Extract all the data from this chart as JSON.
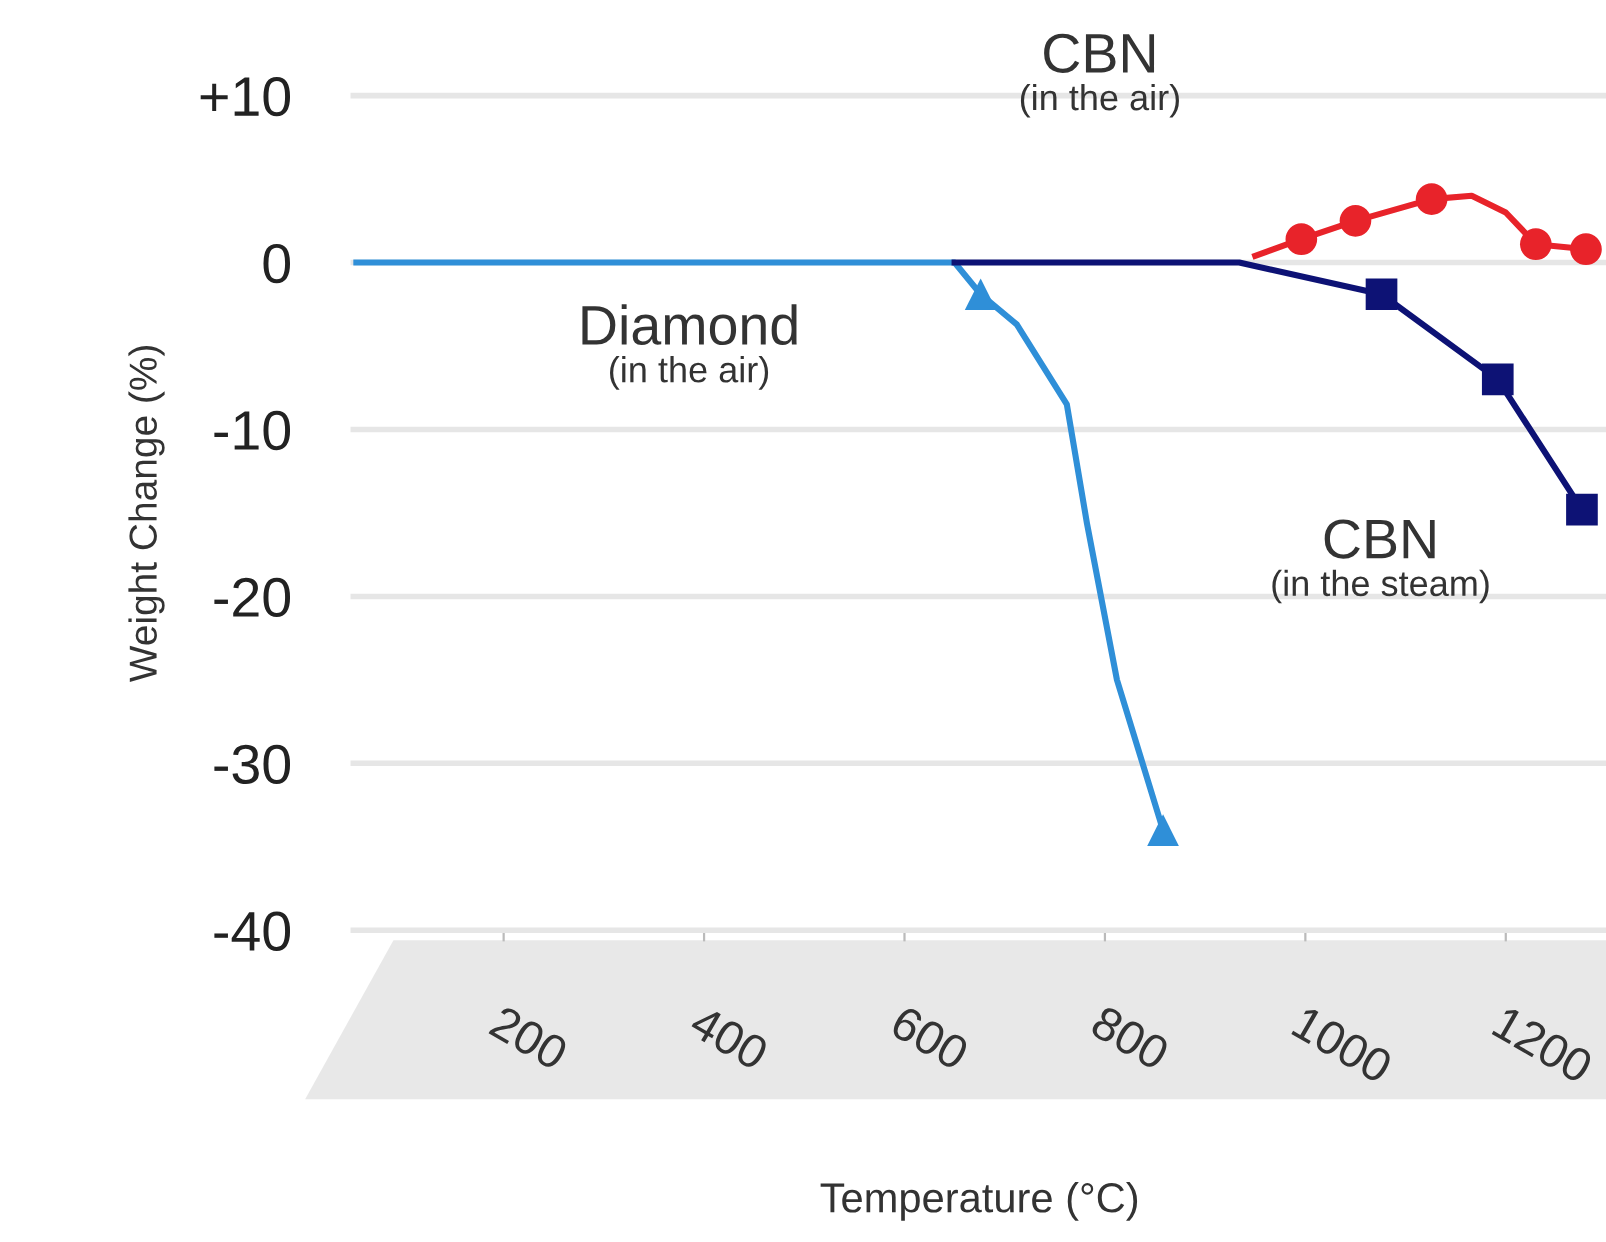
{
  "chart_data": {
    "type": "line",
    "xlabel": "Temperature (°C)",
    "ylabel": "Weight Change (%)",
    "xlim": [
      50,
      1300
    ],
    "xticks": [
      200,
      400,
      600,
      800,
      1000,
      1200
    ],
    "ylim": [
      -40,
      10
    ],
    "yticks": [
      {
        "value": 10,
        "label": "+10"
      },
      {
        "value": 0,
        "label": "0"
      },
      {
        "value": -10,
        "label": "-10"
      },
      {
        "value": -20,
        "label": "-20"
      },
      {
        "value": -30,
        "label": "-30"
      },
      {
        "value": -40,
        "label": "-40"
      }
    ],
    "grid": "y",
    "series": [
      {
        "color": "#2f8fd8",
        "marker": "none",
        "x": [
          50,
          650,
          676,
          712,
          762,
          782,
          812,
          858
        ],
        "values": [
          0,
          0,
          -1.9,
          -3.7,
          -8.5,
          -15.6,
          -25,
          -34
        ]
      },
      {
        "type": "scatter",
        "color": "#2f8fd8",
        "marker": "triangle",
        "x": [
          676,
          858
        ],
        "values": [
          -1.9,
          -34
        ]
      },
      {
        "color": "#0d1275",
        "marker": "none",
        "x": [
          650,
          934,
          1076,
          1192,
          1276
        ],
        "values": [
          0,
          0,
          -1.9,
          -7.0,
          -14.8
        ]
      },
      {
        "type": "scatter",
        "color": "#0d1275",
        "marker": "square",
        "x": [
          1076,
          1192,
          1276
        ],
        "values": [
          -1.9,
          -7.0,
          -14.8
        ]
      },
      {
        "color": "#e8232a",
        "marker": "none",
        "x": [
          950,
          996,
          1050,
          1126,
          1166,
          1200,
          1230,
          1280
        ],
        "values": [
          0.4,
          1.4,
          2.5,
          3.8,
          4.0,
          3.0,
          1.1,
          0.8
        ]
      },
      {
        "type": "scatter",
        "color": "#e8232a",
        "marker": "circle",
        "x": [
          996,
          1050,
          1126,
          1230,
          1280
        ],
        "values": [
          1.4,
          2.5,
          3.8,
          1.1,
          0.8
        ]
      }
    ],
    "annotations": [
      "CBN\n(in the air)",
      "Diamond\n(in the air)",
      "CBN\n(in the steam)"
    ]
  }
}
